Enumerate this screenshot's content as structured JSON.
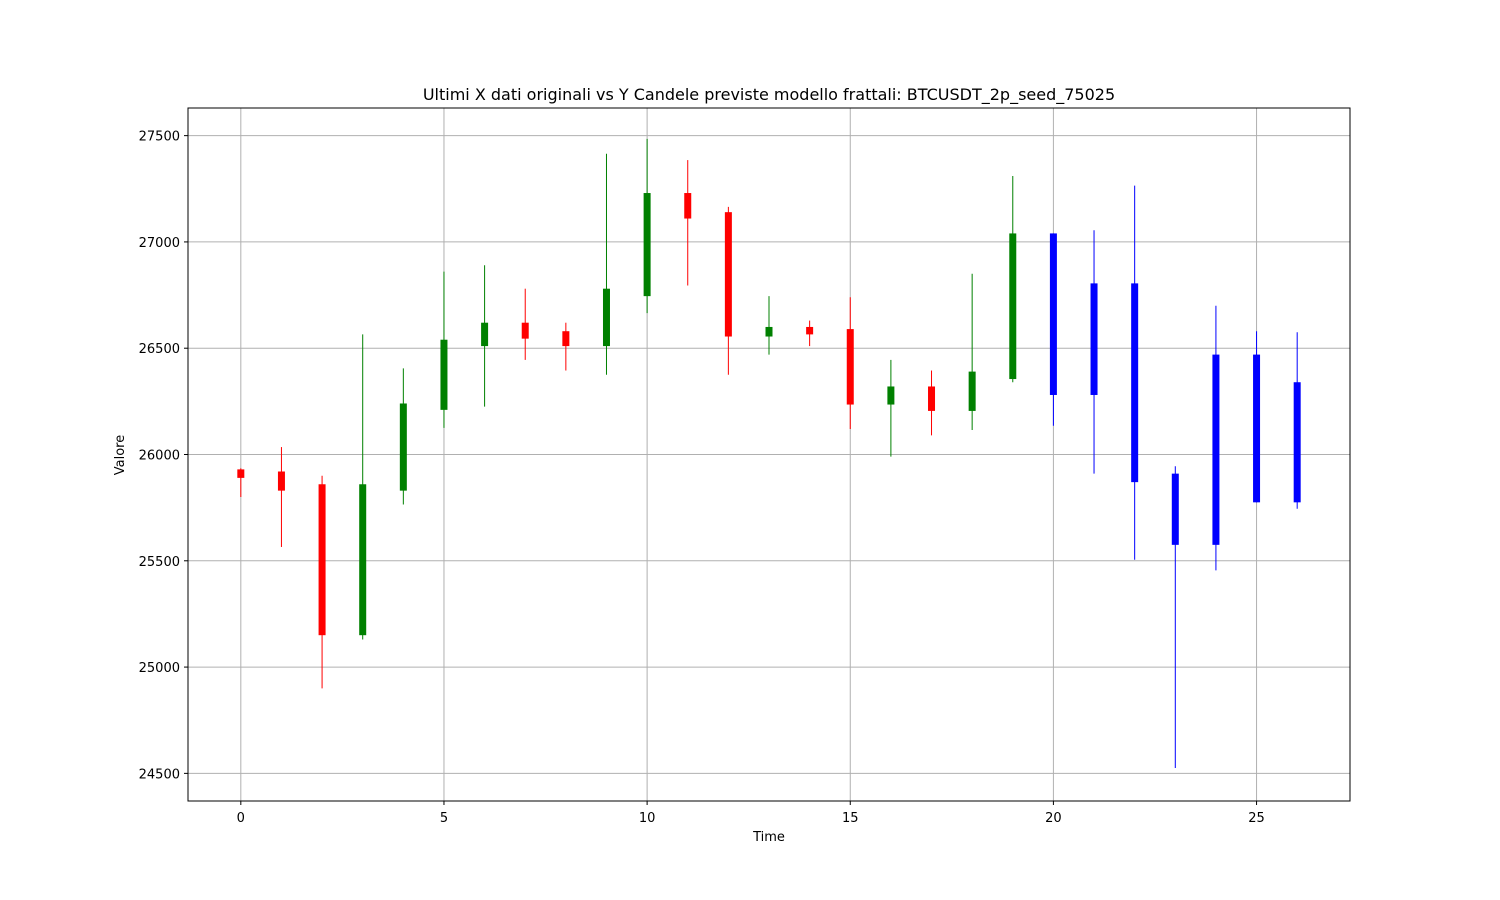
{
  "chart_data": {
    "type": "candlestick",
    "title": "Ultimi X dati originali vs Y Candele previste modello frattali: BTCUSDT_2p_seed_75025",
    "xlabel": "Time",
    "ylabel": "Valore",
    "xlim": [
      -1.3,
      27.3
    ],
    "ylim": [
      24370,
      27630
    ],
    "xticks": [
      0,
      5,
      10,
      15,
      20,
      25
    ],
    "yticks": [
      24500,
      25000,
      25500,
      26000,
      26500,
      27000,
      27500
    ],
    "grid": true,
    "colors": {
      "up": "#008000",
      "down": "#ff0000",
      "predicted": "#0000ff",
      "grid": "#b0b0b0",
      "axes": "#000000"
    },
    "candles": [
      {
        "t": 0,
        "open": 25930,
        "close": 25890,
        "high": 25935,
        "low": 25800,
        "kind": "down"
      },
      {
        "t": 1,
        "open": 25920,
        "close": 25830,
        "high": 26035,
        "low": 25565,
        "kind": "down"
      },
      {
        "t": 2,
        "open": 25860,
        "close": 25150,
        "high": 25900,
        "low": 24900,
        "kind": "down"
      },
      {
        "t": 3,
        "open": 25150,
        "close": 25860,
        "high": 26565,
        "low": 25130,
        "kind": "up"
      },
      {
        "t": 4,
        "open": 25830,
        "close": 26240,
        "high": 26405,
        "low": 25765,
        "kind": "up"
      },
      {
        "t": 5,
        "open": 26210,
        "close": 26540,
        "high": 26860,
        "low": 26125,
        "kind": "up"
      },
      {
        "t": 6,
        "open": 26510,
        "close": 26620,
        "high": 26890,
        "low": 26225,
        "kind": "up"
      },
      {
        "t": 7,
        "open": 26620,
        "close": 26545,
        "high": 26780,
        "low": 26445,
        "kind": "down"
      },
      {
        "t": 8,
        "open": 26580,
        "close": 26510,
        "high": 26620,
        "low": 26395,
        "kind": "down"
      },
      {
        "t": 9,
        "open": 26510,
        "close": 26780,
        "high": 27415,
        "low": 26375,
        "kind": "up"
      },
      {
        "t": 10,
        "open": 26745,
        "close": 27230,
        "high": 27485,
        "low": 26665,
        "kind": "up"
      },
      {
        "t": 11,
        "open": 27230,
        "close": 27110,
        "high": 27385,
        "low": 26795,
        "kind": "down"
      },
      {
        "t": 12,
        "open": 27140,
        "close": 26555,
        "high": 27165,
        "low": 26375,
        "kind": "down"
      },
      {
        "t": 13,
        "open": 26555,
        "close": 26600,
        "high": 26745,
        "low": 26470,
        "kind": "up"
      },
      {
        "t": 14,
        "open": 26600,
        "close": 26565,
        "high": 26630,
        "low": 26510,
        "kind": "down"
      },
      {
        "t": 15,
        "open": 26590,
        "close": 26235,
        "high": 26740,
        "low": 26120,
        "kind": "down"
      },
      {
        "t": 16,
        "open": 26235,
        "close": 26320,
        "high": 26445,
        "low": 25990,
        "kind": "up"
      },
      {
        "t": 17,
        "open": 26320,
        "close": 26205,
        "high": 26395,
        "low": 26090,
        "kind": "down"
      },
      {
        "t": 18,
        "open": 26205,
        "close": 26390,
        "high": 26850,
        "low": 26115,
        "kind": "up"
      },
      {
        "t": 19,
        "open": 26355,
        "close": 27040,
        "high": 27310,
        "low": 26340,
        "kind": "up"
      },
      {
        "t": 20,
        "open": 27040,
        "close": 26280,
        "high": 27040,
        "low": 26135,
        "kind": "predicted"
      },
      {
        "t": 21,
        "open": 26805,
        "close": 26280,
        "high": 27055,
        "low": 25910,
        "kind": "predicted"
      },
      {
        "t": 22,
        "open": 26805,
        "close": 25870,
        "high": 27265,
        "low": 25505,
        "kind": "predicted"
      },
      {
        "t": 23,
        "open": 25910,
        "close": 25575,
        "high": 25945,
        "low": 24525,
        "kind": "predicted"
      },
      {
        "t": 24,
        "open": 25575,
        "close": 26470,
        "high": 26700,
        "low": 25455,
        "kind": "predicted"
      },
      {
        "t": 25,
        "open": 25775,
        "close": 26470,
        "high": 26580,
        "low": 25775,
        "kind": "predicted"
      },
      {
        "t": 26,
        "open": 25775,
        "close": 26340,
        "high": 26575,
        "low": 25745,
        "kind": "predicted"
      }
    ]
  }
}
